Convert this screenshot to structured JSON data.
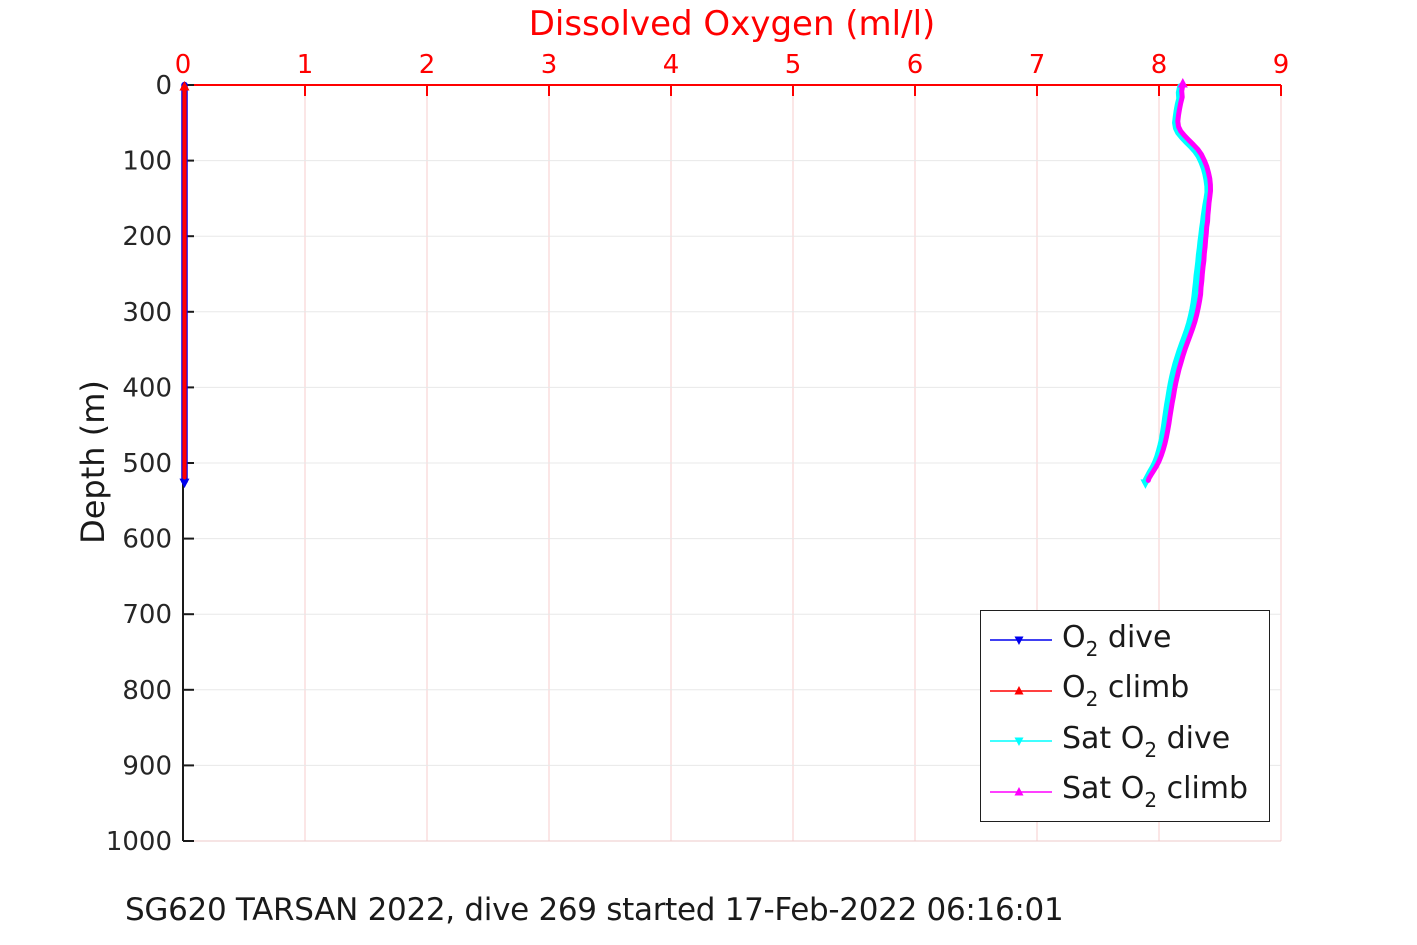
{
  "figure": {
    "caption": "SG620 TARSAN 2022, dive 269 started 17-Feb-2022 06:16:01"
  },
  "chart_data": {
    "type": "line",
    "title": "Dissolved Oxygen (ml/l)",
    "ylabel": "Depth (m)",
    "x_axis": {
      "position": "top",
      "color": "#ff0000",
      "lim": [
        0,
        9
      ],
      "ticks": [
        0,
        1,
        2,
        3,
        4,
        5,
        6,
        7,
        8,
        9
      ]
    },
    "y_axis": {
      "direction": "down",
      "color": "#1a1a1a",
      "text_color": "#262626",
      "lim": [
        0,
        1000
      ],
      "ticks": [
        0,
        100,
        200,
        300,
        400,
        500,
        600,
        700,
        800,
        900,
        1000
      ]
    },
    "grid": {
      "x_color": "#f7cdcd",
      "y_color": "#e8e8e8",
      "bottom_color": "#edcaca"
    },
    "legend": {
      "position": "inside lower right"
    },
    "series": [
      {
        "name": "O2 dive",
        "label": {
          "pre": "O",
          "sub": "2",
          "post": " dive"
        },
        "color": "#0000ee",
        "marker": "triangle-down",
        "line_width": 6.5,
        "points": [
          [
            0.012,
            0
          ],
          [
            0.012,
            524
          ]
        ]
      },
      {
        "name": "O2 climb",
        "label": {
          "pre": "O",
          "sub": "2",
          "post": " climb"
        },
        "color": "#ff0000",
        "marker": "triangle-up",
        "line_width": 4.2,
        "points": [
          [
            0.012,
            4
          ],
          [
            0.012,
            519
          ]
        ]
      },
      {
        "name": "Sat O2 dive",
        "label": {
          "pre": "Sat O",
          "sub": "2",
          "post": " dive"
        },
        "color": "#00ffff",
        "marker": "triangle-down",
        "line_width": 6.5,
        "points": [
          [
            8.175,
            2
          ],
          [
            8.165,
            10
          ],
          [
            8.168,
            18
          ],
          [
            8.156,
            26
          ],
          [
            8.147,
            34
          ],
          [
            8.139,
            42
          ],
          [
            8.134,
            50
          ],
          [
            8.141,
            57
          ],
          [
            8.159,
            63
          ],
          [
            8.19,
            69
          ],
          [
            8.225,
            75
          ],
          [
            8.262,
            81
          ],
          [
            8.297,
            87
          ],
          [
            8.327,
            94
          ],
          [
            8.35,
            102
          ],
          [
            8.369,
            110
          ],
          [
            8.382,
            118
          ],
          [
            8.392,
            126
          ],
          [
            8.398,
            134
          ],
          [
            8.399,
            142
          ],
          [
            8.392,
            150
          ],
          [
            8.383,
            158
          ],
          [
            8.375,
            166
          ],
          [
            8.368,
            174
          ],
          [
            8.362,
            182
          ],
          [
            8.355,
            190
          ],
          [
            8.349,
            198
          ],
          [
            8.342,
            207
          ],
          [
            8.336,
            216
          ],
          [
            8.329,
            225
          ],
          [
            8.324,
            234
          ],
          [
            8.317,
            243
          ],
          [
            8.31,
            252
          ],
          [
            8.305,
            261
          ],
          [
            8.298,
            270
          ],
          [
            8.293,
            279
          ],
          [
            8.285,
            288
          ],
          [
            8.275,
            297
          ],
          [
            8.263,
            306
          ],
          [
            8.249,
            315
          ],
          [
            8.232,
            324
          ],
          [
            8.212,
            333
          ],
          [
            8.191,
            342
          ],
          [
            8.171,
            351
          ],
          [
            8.153,
            360
          ],
          [
            8.136,
            369
          ],
          [
            8.121,
            378
          ],
          [
            8.108,
            387
          ],
          [
            8.097,
            396
          ],
          [
            8.087,
            405
          ],
          [
            8.078,
            414
          ],
          [
            8.068,
            423
          ],
          [
            8.06,
            432
          ],
          [
            8.052,
            441
          ],
          [
            8.044,
            450
          ],
          [
            8.035,
            459
          ],
          [
            8.026,
            468
          ],
          [
            8.015,
            476
          ],
          [
            8.002,
            484
          ],
          [
            7.987,
            492
          ],
          [
            7.968,
            500
          ],
          [
            7.946,
            507
          ],
          [
            7.925,
            513
          ],
          [
            7.908,
            518
          ],
          [
            7.895,
            522
          ],
          [
            7.889,
            525
          ]
        ]
      },
      {
        "name": "Sat O2 climb",
        "label": {
          "pre": "Sat O",
          "sub": "2",
          "post": " climb"
        },
        "color": "#ff00ff",
        "marker": "triangle-up",
        "line_width": 5,
        "points": [
          [
            8.195,
            0
          ],
          [
            8.186,
            8
          ],
          [
            8.19,
            16
          ],
          [
            8.178,
            24
          ],
          [
            8.168,
            32
          ],
          [
            8.16,
            40
          ],
          [
            8.154,
            48
          ],
          [
            8.16,
            55
          ],
          [
            8.178,
            61
          ],
          [
            8.21,
            67
          ],
          [
            8.245,
            73
          ],
          [
            8.282,
            79
          ],
          [
            8.318,
            85
          ],
          [
            8.348,
            92
          ],
          [
            8.372,
            100
          ],
          [
            8.392,
            108
          ],
          [
            8.406,
            116
          ],
          [
            8.416,
            124
          ],
          [
            8.421,
            132
          ],
          [
            8.422,
            140
          ],
          [
            8.416,
            148
          ],
          [
            8.41,
            156
          ],
          [
            8.406,
            164
          ],
          [
            8.401,
            172
          ],
          [
            8.398,
            180
          ],
          [
            8.391,
            188
          ],
          [
            8.388,
            196
          ],
          [
            8.382,
            205
          ],
          [
            8.378,
            214
          ],
          [
            8.371,
            223
          ],
          [
            8.368,
            232
          ],
          [
            8.361,
            241
          ],
          [
            8.355,
            250
          ],
          [
            8.351,
            259
          ],
          [
            8.344,
            268
          ],
          [
            8.341,
            277
          ],
          [
            8.332,
            286
          ],
          [
            8.321,
            295
          ],
          [
            8.309,
            304
          ],
          [
            8.294,
            313
          ],
          [
            8.276,
            322
          ],
          [
            8.256,
            331
          ],
          [
            8.235,
            340
          ],
          [
            8.215,
            349
          ],
          [
            8.197,
            358
          ],
          [
            8.18,
            367
          ],
          [
            8.164,
            376
          ],
          [
            8.151,
            385
          ],
          [
            8.138,
            394
          ],
          [
            8.127,
            403
          ],
          [
            8.118,
            412
          ],
          [
            8.107,
            421
          ],
          [
            8.098,
            430
          ],
          [
            8.089,
            439
          ],
          [
            8.081,
            448
          ],
          [
            8.071,
            457
          ],
          [
            8.061,
            466
          ],
          [
            8.049,
            474
          ],
          [
            8.035,
            482
          ],
          [
            8.019,
            490
          ],
          [
            7.999,
            498
          ],
          [
            7.976,
            505
          ],
          [
            7.953,
            511
          ],
          [
            7.934,
            516
          ],
          [
            7.919,
            520
          ],
          [
            7.912,
            523
          ]
        ]
      }
    ]
  }
}
